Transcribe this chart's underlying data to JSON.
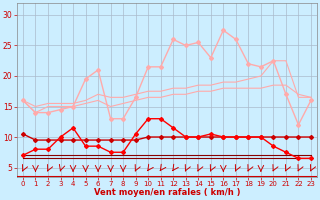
{
  "x": [
    0,
    1,
    2,
    3,
    4,
    5,
    6,
    7,
    8,
    9,
    10,
    11,
    12,
    13,
    14,
    15,
    16,
    17,
    18,
    19,
    20,
    21,
    22,
    23
  ],
  "line_dark1": [
    10.5,
    9.5,
    9.5,
    9.5,
    9.5,
    9.5,
    9.5,
    9.5,
    9.5,
    9.5,
    10,
    10,
    10,
    10,
    10,
    10,
    10,
    10,
    10,
    10,
    10,
    10,
    10,
    10
  ],
  "line_dark2": [
    6.5,
    6.5,
    6.5,
    6.5,
    6.5,
    6.5,
    6.5,
    6.5,
    6.5,
    6.5,
    6.5,
    6.5,
    6.5,
    6.5,
    6.5,
    6.5,
    6.5,
    6.5,
    6.5,
    6.5,
    6.5,
    6.5,
    6.5,
    6.5
  ],
  "line_dark3": [
    7.0,
    7.0,
    7.0,
    7.0,
    7.0,
    7.0,
    7.0,
    7.0,
    7.0,
    7.0,
    7.0,
    7.0,
    7.0,
    7.0,
    7.0,
    7.0,
    7.0,
    7.0,
    7.0,
    7.0,
    7.0,
    7.0,
    7.0,
    7.0
  ],
  "line_red": [
    7.0,
    8.0,
    8.0,
    10.0,
    11.5,
    8.5,
    8.5,
    7.5,
    7.5,
    10.5,
    13.0,
    13.0,
    11.5,
    10.0,
    10.0,
    10.5,
    10.0,
    10.0,
    10.0,
    10.0,
    8.5,
    7.5,
    6.5,
    6.5
  ],
  "line_pink1": [
    16.0,
    14.0,
    14.0,
    14.5,
    15.0,
    19.5,
    21.0,
    13.0,
    13.0,
    16.5,
    21.5,
    21.5,
    26.0,
    25.0,
    25.5,
    23.0,
    27.5,
    26.0,
    22.0,
    21.5,
    22.5,
    17.0,
    12.0,
    16.0
  ],
  "line_pink2": [
    16.0,
    14.0,
    15.0,
    15.0,
    15.0,
    15.5,
    16.0,
    15.0,
    15.5,
    16.0,
    16.5,
    16.5,
    17.0,
    17.0,
    17.5,
    17.5,
    18.0,
    18.0,
    18.0,
    18.0,
    18.5,
    18.5,
    17.0,
    16.5
  ],
  "line_pink3": [
    16.0,
    15.0,
    15.5,
    15.5,
    15.5,
    16.0,
    17.0,
    16.5,
    16.5,
    17.0,
    17.5,
    17.5,
    18.0,
    18.0,
    18.5,
    18.5,
    19.0,
    19.0,
    19.5,
    20.0,
    22.5,
    22.5,
    16.5,
    16.5
  ],
  "bg_color": "#cceeff",
  "grid_color": "#aabbcc",
  "xlabel": "Vent moyen/en rafales ( km/h )",
  "xlabel_color": "#cc0000",
  "tick_color": "#cc0000",
  "ylim": [
    3.5,
    32
  ],
  "xlim": [
    -0.5,
    23.5
  ],
  "yticks": [
    5,
    10,
    15,
    20,
    25,
    30
  ],
  "xticks": [
    0,
    1,
    2,
    3,
    4,
    5,
    6,
    7,
    8,
    9,
    10,
    11,
    12,
    13,
    14,
    15,
    16,
    17,
    18,
    19,
    20,
    21,
    22,
    23
  ]
}
